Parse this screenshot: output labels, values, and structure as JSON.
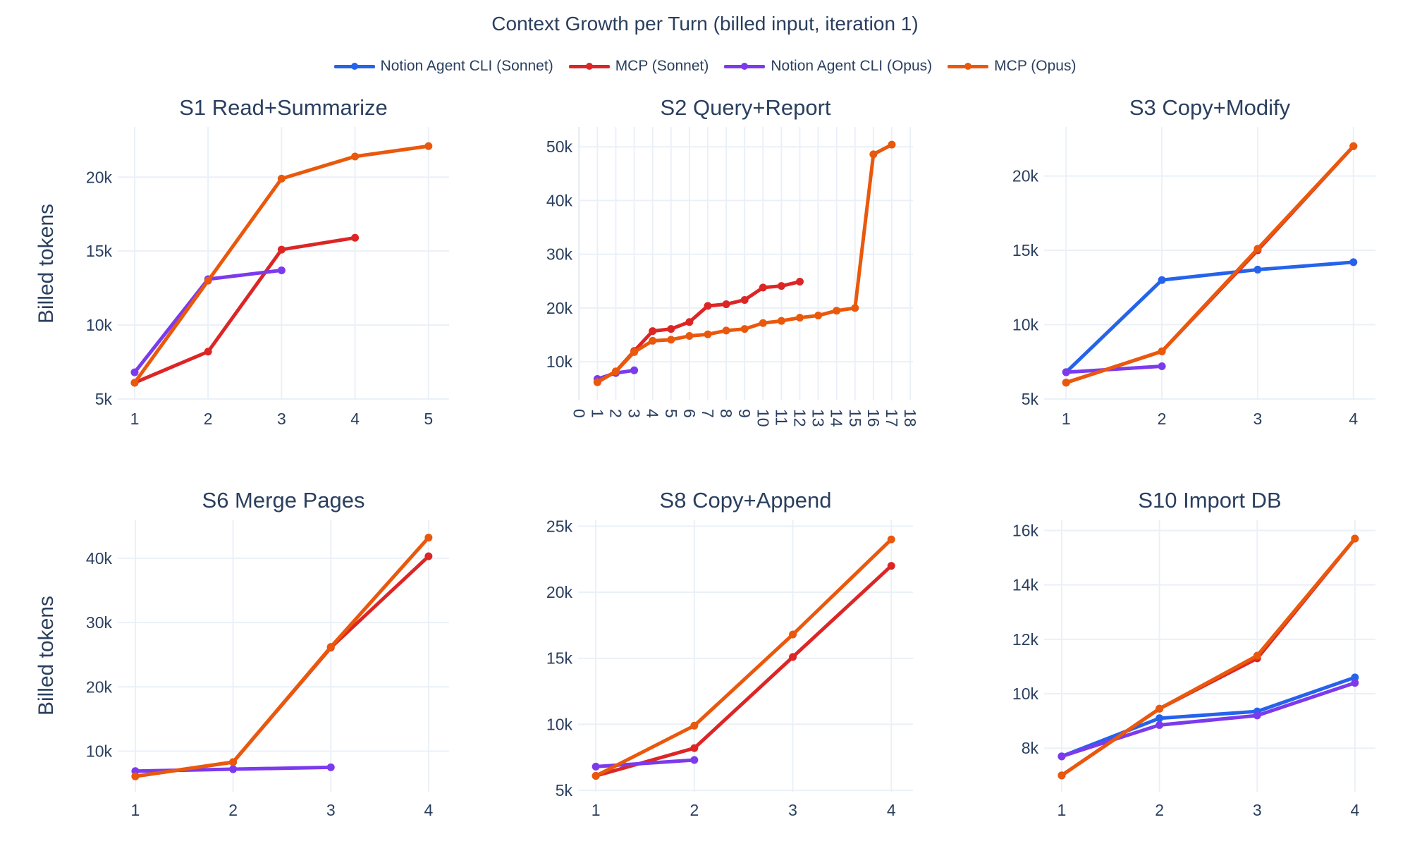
{
  "chart_data": {
    "title": "Context Growth per Turn (billed input, iteration 1)",
    "type": "line",
    "legend": {
      "placement": "top-center",
      "entries": [
        {
          "name": "Notion Agent CLI (Sonnet)",
          "color": "#2563eb"
        },
        {
          "name": "MCP (Sonnet)",
          "color": "#dc2626"
        },
        {
          "name": "Notion Agent CLI (Opus)",
          "color": "#7c3aed"
        },
        {
          "name": "MCP (Opus)",
          "color": "#ea580c"
        }
      ]
    },
    "grid": true,
    "ylabel": "Billed tokens",
    "panels": [
      {
        "title": "S1 Read+Summarize",
        "xlim": [
          0.77,
          5.28
        ],
        "ylim": [
          4900,
          23400
        ],
        "xticks": [
          1,
          2,
          3,
          4,
          5
        ],
        "xtick_labels": [
          "1",
          "2",
          "3",
          "4",
          "5"
        ],
        "yticks": [
          5000,
          10000,
          15000,
          20000
        ],
        "ytick_labels": [
          "5k",
          "10k",
          "15k",
          "20k"
        ],
        "show_ylabel": true,
        "series": [
          {
            "name": "MCP (Sonnet)",
            "x": [
              1,
              2,
              3,
              4
            ],
            "y": [
              6100,
              8200,
              15100,
              15900
            ]
          },
          {
            "name": "Notion Agent CLI (Opus)",
            "x": [
              1,
              2,
              3
            ],
            "y": [
              6800,
              13100,
              13700
            ]
          },
          {
            "name": "MCP (Opus)",
            "x": [
              1,
              2,
              3,
              4,
              5
            ],
            "y": [
              6100,
              13000,
              19900,
              21400,
              22100
            ]
          }
        ]
      },
      {
        "title": "S2 Query+Report",
        "xlim": [
          -0.05,
          18.15
        ],
        "ylim": [
          2800,
          53700
        ],
        "xticks": [
          0,
          1,
          2,
          3,
          4,
          5,
          6,
          7,
          8,
          9,
          10,
          11,
          12,
          13,
          14,
          15,
          16,
          17,
          18
        ],
        "xtick_labels": [
          "0",
          "1",
          "2",
          "3",
          "4",
          "5",
          "6",
          "7",
          "8",
          "9",
          "10",
          "11",
          "12",
          "13",
          "14",
          "15",
          "16",
          "17",
          "18"
        ],
        "xtick_rotated": true,
        "yticks": [
          10000,
          20000,
          30000,
          40000,
          50000
        ],
        "ytick_labels": [
          "10k",
          "20k",
          "30k",
          "40k",
          "50k"
        ],
        "show_ylabel": false,
        "series": [
          {
            "name": "MCP (Sonnet)",
            "x": [
              1,
              2,
              3,
              4,
              5,
              6,
              7,
              8,
              9,
              10,
              11,
              12
            ],
            "y": [
              6200,
              8200,
              12000,
              15700,
              16100,
              17400,
              20400,
              20700,
              21500,
              23800,
              24100,
              24900
            ]
          },
          {
            "name": "Notion Agent CLI (Opus)",
            "x": [
              1,
              2,
              3
            ],
            "y": [
              6800,
              7900,
              8400
            ]
          },
          {
            "name": "MCP (Opus)",
            "x": [
              1,
              2,
              3,
              4,
              5,
              6,
              7,
              8,
              9,
              10,
              11,
              12,
              13,
              14,
              15,
              16,
              17
            ],
            "y": [
              6200,
              8200,
              11800,
              13900,
              14100,
              14800,
              15100,
              15800,
              16100,
              17200,
              17600,
              18200,
              18600,
              19500,
              20000,
              48600,
              50400
            ]
          }
        ]
      },
      {
        "title": "S3 Copy+Modify",
        "xlim": [
          0.77,
          4.23
        ],
        "ylim": [
          4900,
          23300
        ],
        "xticks": [
          1,
          2,
          3,
          4
        ],
        "xtick_labels": [
          "1",
          "2",
          "3",
          "4"
        ],
        "yticks": [
          5000,
          10000,
          15000,
          20000
        ],
        "ytick_labels": [
          "5k",
          "10k",
          "15k",
          "20k"
        ],
        "show_ylabel": false,
        "series": [
          {
            "name": "Notion Agent CLI (Sonnet)",
            "x": [
              1,
              2,
              3,
              4
            ],
            "y": [
              6800,
              13000,
              13700,
              14200
            ]
          },
          {
            "name": "MCP (Sonnet)",
            "x": [
              1,
              2,
              3,
              4
            ],
            "y": [
              6100,
              8200,
              15000,
              22000
            ]
          },
          {
            "name": "Notion Agent CLI (Opus)",
            "x": [
              1,
              2
            ],
            "y": [
              6800,
              7200
            ]
          },
          {
            "name": "MCP (Opus)",
            "x": [
              1,
              2,
              3,
              4
            ],
            "y": [
              6100,
              8200,
              15100,
              22000
            ]
          }
        ]
      },
      {
        "title": "S6 Merge Pages",
        "xlim": [
          0.82,
          4.21
        ],
        "ylim": [
          3700,
          46000
        ],
        "xticks": [
          1,
          2,
          3,
          4
        ],
        "xtick_labels": [
          "1",
          "2",
          "3",
          "4"
        ],
        "yticks": [
          10000,
          20000,
          30000,
          40000
        ],
        "ytick_labels": [
          "10k",
          "20k",
          "30k",
          "40k"
        ],
        "show_ylabel": true,
        "series": [
          {
            "name": "MCP (Sonnet)",
            "x": [
              1,
              2,
              3,
              4
            ],
            "y": [
              6100,
              8300,
              26100,
              40300
            ]
          },
          {
            "name": "Notion Agent CLI (Opus)",
            "x": [
              1,
              2,
              3
            ],
            "y": [
              6900,
              7200,
              7500
            ]
          },
          {
            "name": "MCP (Opus)",
            "x": [
              1,
              2,
              3,
              4
            ],
            "y": [
              6100,
              8300,
              26200,
              43200
            ]
          }
        ]
      },
      {
        "title": "S8 Copy+Append",
        "xlim": [
          0.82,
          4.22
        ],
        "ylim": [
          4900,
          25500
        ],
        "xticks": [
          1,
          2,
          3,
          4
        ],
        "xtick_labels": [
          "1",
          "2",
          "3",
          "4"
        ],
        "yticks": [
          5000,
          10000,
          15000,
          20000,
          25000
        ],
        "ytick_labels": [
          "5k",
          "10k",
          "15k",
          "20k",
          "25k"
        ],
        "show_ylabel": false,
        "series": [
          {
            "name": "MCP (Sonnet)",
            "x": [
              1,
              2,
              3,
              4
            ],
            "y": [
              6100,
              8200,
              15100,
              22000
            ]
          },
          {
            "name": "Notion Agent CLI (Opus)",
            "x": [
              1,
              2
            ],
            "y": [
              6800,
              7300
            ]
          },
          {
            "name": "MCP (Opus)",
            "x": [
              1,
              2,
              3,
              4
            ],
            "y": [
              6100,
              9900,
              16800,
              24000
            ]
          }
        ]
      },
      {
        "title": "S10 Import DB",
        "xlim": [
          0.82,
          4.21
        ],
        "ylim": [
          6400,
          16400
        ],
        "xticks": [
          1,
          2,
          3,
          4
        ],
        "xtick_labels": [
          "1",
          "2",
          "3",
          "4"
        ],
        "yticks": [
          8000,
          10000,
          12000,
          14000,
          16000
        ],
        "ytick_labels": [
          "8k",
          "10k",
          "12k",
          "14k",
          "16k"
        ],
        "show_ylabel": false,
        "series": [
          {
            "name": "Notion Agent CLI (Sonnet)",
            "x": [
              1,
              2,
              3,
              4
            ],
            "y": [
              7700,
              9100,
              9350,
              10600
            ]
          },
          {
            "name": "MCP (Sonnet)",
            "x": [
              1,
              2,
              3,
              4
            ],
            "y": [
              7000,
              9450,
              11300,
              15700
            ]
          },
          {
            "name": "Notion Agent CLI (Opus)",
            "x": [
              1,
              2,
              3,
              4
            ],
            "y": [
              7700,
              8850,
              9200,
              10400
            ]
          },
          {
            "name": "MCP (Opus)",
            "x": [
              1,
              2,
              3,
              4
            ],
            "y": [
              7000,
              9450,
              11400,
              15700
            ]
          }
        ]
      }
    ]
  }
}
